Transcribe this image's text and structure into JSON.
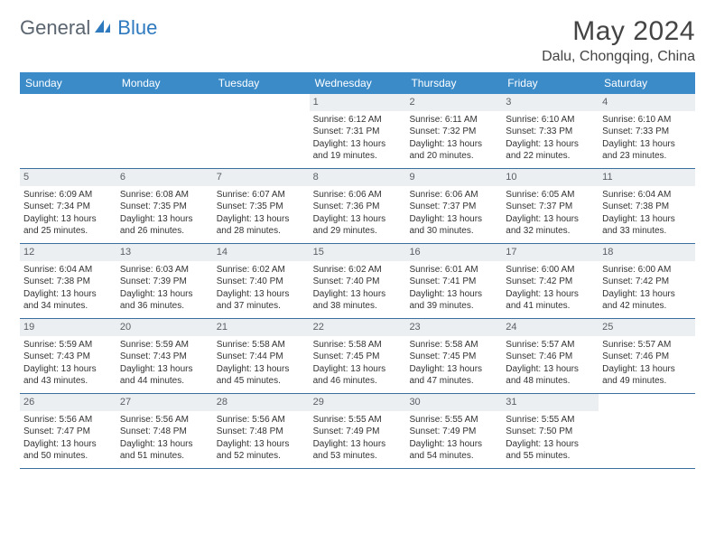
{
  "brand": {
    "part1": "General",
    "part2": "Blue"
  },
  "title": "May 2024",
  "location": "Dalu, Chongqing, China",
  "weekdays": [
    "Sunday",
    "Monday",
    "Tuesday",
    "Wednesday",
    "Thursday",
    "Friday",
    "Saturday"
  ],
  "colors": {
    "header_bg": "#3b8bc9",
    "daynum_bg": "#eceff1",
    "rule": "#3b6fa0",
    "logo_gray": "#5a6570",
    "logo_blue": "#2f7abf"
  },
  "weeks": [
    [
      {
        "n": "",
        "empty": true
      },
      {
        "n": "",
        "empty": true
      },
      {
        "n": "",
        "empty": true
      },
      {
        "n": "1",
        "sunrise": "6:12 AM",
        "sunset": "7:31 PM",
        "daylight": "13 hours and 19 minutes."
      },
      {
        "n": "2",
        "sunrise": "6:11 AM",
        "sunset": "7:32 PM",
        "daylight": "13 hours and 20 minutes."
      },
      {
        "n": "3",
        "sunrise": "6:10 AM",
        "sunset": "7:33 PM",
        "daylight": "13 hours and 22 minutes."
      },
      {
        "n": "4",
        "sunrise": "6:10 AM",
        "sunset": "7:33 PM",
        "daylight": "13 hours and 23 minutes."
      }
    ],
    [
      {
        "n": "5",
        "sunrise": "6:09 AM",
        "sunset": "7:34 PM",
        "daylight": "13 hours and 25 minutes."
      },
      {
        "n": "6",
        "sunrise": "6:08 AM",
        "sunset": "7:35 PM",
        "daylight": "13 hours and 26 minutes."
      },
      {
        "n": "7",
        "sunrise": "6:07 AM",
        "sunset": "7:35 PM",
        "daylight": "13 hours and 28 minutes."
      },
      {
        "n": "8",
        "sunrise": "6:06 AM",
        "sunset": "7:36 PM",
        "daylight": "13 hours and 29 minutes."
      },
      {
        "n": "9",
        "sunrise": "6:06 AM",
        "sunset": "7:37 PM",
        "daylight": "13 hours and 30 minutes."
      },
      {
        "n": "10",
        "sunrise": "6:05 AM",
        "sunset": "7:37 PM",
        "daylight": "13 hours and 32 minutes."
      },
      {
        "n": "11",
        "sunrise": "6:04 AM",
        "sunset": "7:38 PM",
        "daylight": "13 hours and 33 minutes."
      }
    ],
    [
      {
        "n": "12",
        "sunrise": "6:04 AM",
        "sunset": "7:38 PM",
        "daylight": "13 hours and 34 minutes."
      },
      {
        "n": "13",
        "sunrise": "6:03 AM",
        "sunset": "7:39 PM",
        "daylight": "13 hours and 36 minutes."
      },
      {
        "n": "14",
        "sunrise": "6:02 AM",
        "sunset": "7:40 PM",
        "daylight": "13 hours and 37 minutes."
      },
      {
        "n": "15",
        "sunrise": "6:02 AM",
        "sunset": "7:40 PM",
        "daylight": "13 hours and 38 minutes."
      },
      {
        "n": "16",
        "sunrise": "6:01 AM",
        "sunset": "7:41 PM",
        "daylight": "13 hours and 39 minutes."
      },
      {
        "n": "17",
        "sunrise": "6:00 AM",
        "sunset": "7:42 PM",
        "daylight": "13 hours and 41 minutes."
      },
      {
        "n": "18",
        "sunrise": "6:00 AM",
        "sunset": "7:42 PM",
        "daylight": "13 hours and 42 minutes."
      }
    ],
    [
      {
        "n": "19",
        "sunrise": "5:59 AM",
        "sunset": "7:43 PM",
        "daylight": "13 hours and 43 minutes."
      },
      {
        "n": "20",
        "sunrise": "5:59 AM",
        "sunset": "7:43 PM",
        "daylight": "13 hours and 44 minutes."
      },
      {
        "n": "21",
        "sunrise": "5:58 AM",
        "sunset": "7:44 PM",
        "daylight": "13 hours and 45 minutes."
      },
      {
        "n": "22",
        "sunrise": "5:58 AM",
        "sunset": "7:45 PM",
        "daylight": "13 hours and 46 minutes."
      },
      {
        "n": "23",
        "sunrise": "5:58 AM",
        "sunset": "7:45 PM",
        "daylight": "13 hours and 47 minutes."
      },
      {
        "n": "24",
        "sunrise": "5:57 AM",
        "sunset": "7:46 PM",
        "daylight": "13 hours and 48 minutes."
      },
      {
        "n": "25",
        "sunrise": "5:57 AM",
        "sunset": "7:46 PM",
        "daylight": "13 hours and 49 minutes."
      }
    ],
    [
      {
        "n": "26",
        "sunrise": "5:56 AM",
        "sunset": "7:47 PM",
        "daylight": "13 hours and 50 minutes."
      },
      {
        "n": "27",
        "sunrise": "5:56 AM",
        "sunset": "7:48 PM",
        "daylight": "13 hours and 51 minutes."
      },
      {
        "n": "28",
        "sunrise": "5:56 AM",
        "sunset": "7:48 PM",
        "daylight": "13 hours and 52 minutes."
      },
      {
        "n": "29",
        "sunrise": "5:55 AM",
        "sunset": "7:49 PM",
        "daylight": "13 hours and 53 minutes."
      },
      {
        "n": "30",
        "sunrise": "5:55 AM",
        "sunset": "7:49 PM",
        "daylight": "13 hours and 54 minutes."
      },
      {
        "n": "31",
        "sunrise": "5:55 AM",
        "sunset": "7:50 PM",
        "daylight": "13 hours and 55 minutes."
      },
      {
        "n": "",
        "empty": true
      }
    ]
  ],
  "labels": {
    "sunrise": "Sunrise:",
    "sunset": "Sunset:",
    "daylight": "Daylight:"
  }
}
